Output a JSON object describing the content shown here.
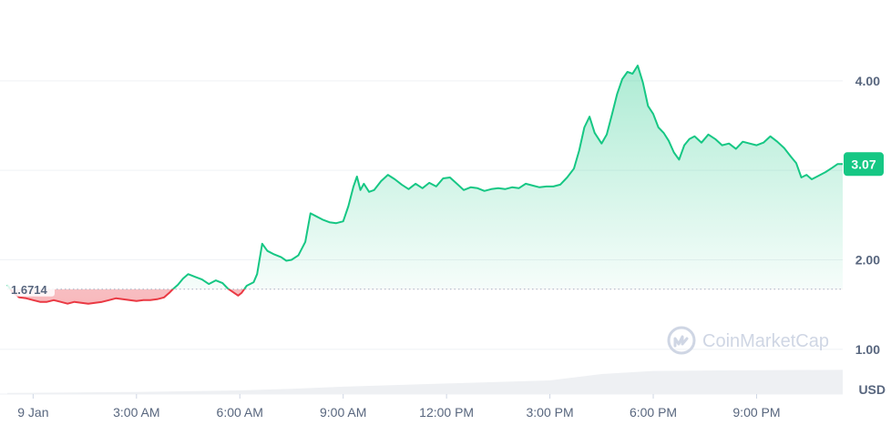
{
  "watermark": {
    "text": "CoinMarketCap",
    "icon": "coinmarketcap-logo-icon"
  },
  "chart_data": {
    "type": "area",
    "currency": "USD",
    "opening_price": "1.6714",
    "opening_value": 1.6714,
    "current_price": "3.07",
    "ylim": [
      0.5,
      4.7
    ],
    "y_ticks": [
      {
        "value": 1.0,
        "label": "1.00"
      },
      {
        "value": 2.0,
        "label": "2.00"
      },
      {
        "value": 3.0,
        "label": "3.00"
      },
      {
        "value": 4.0,
        "label": "4.00"
      }
    ],
    "xlim": [
      -0.75,
      23.5
    ],
    "x_ticks": [
      {
        "value": 0,
        "label": "9 Jan"
      },
      {
        "value": 3,
        "label": "3:00 AM"
      },
      {
        "value": 6,
        "label": "6:00 AM"
      },
      {
        "value": 9,
        "label": "9:00 AM"
      },
      {
        "value": 12,
        "label": "12:00 PM"
      },
      {
        "value": 15,
        "label": "3:00 PM"
      },
      {
        "value": 18,
        "label": "6:00 PM"
      },
      {
        "value": 21,
        "label": "9:00 PM"
      }
    ],
    "colors": {
      "up": "#16c784",
      "down": "#ea3943",
      "grid": "#eff2f5",
      "badge": "#16c784",
      "volume": "#eef0f3"
    },
    "price": [
      [
        -0.75,
        1.72
      ],
      [
        -0.6,
        1.64
      ],
      [
        -0.4,
        1.58
      ],
      [
        -0.2,
        1.57
      ],
      [
        0.0,
        1.55
      ],
      [
        0.2,
        1.53
      ],
      [
        0.4,
        1.53
      ],
      [
        0.6,
        1.55
      ],
      [
        0.8,
        1.53
      ],
      [
        1.0,
        1.51
      ],
      [
        1.2,
        1.53
      ],
      [
        1.4,
        1.52
      ],
      [
        1.6,
        1.51
      ],
      [
        1.8,
        1.52
      ],
      [
        2.0,
        1.53
      ],
      [
        2.2,
        1.55
      ],
      [
        2.4,
        1.57
      ],
      [
        2.6,
        1.56
      ],
      [
        2.8,
        1.55
      ],
      [
        3.0,
        1.54
      ],
      [
        3.2,
        1.55
      ],
      [
        3.4,
        1.55
      ],
      [
        3.6,
        1.56
      ],
      [
        3.8,
        1.58
      ],
      [
        3.95,
        1.63
      ],
      [
        4.05,
        1.67
      ],
      [
        4.2,
        1.72
      ],
      [
        4.35,
        1.79
      ],
      [
        4.5,
        1.84
      ],
      [
        4.7,
        1.81
      ],
      [
        4.9,
        1.78
      ],
      [
        5.1,
        1.73
      ],
      [
        5.3,
        1.77
      ],
      [
        5.5,
        1.74
      ],
      [
        5.65,
        1.68
      ],
      [
        5.8,
        1.64
      ],
      [
        5.95,
        1.6
      ],
      [
        6.05,
        1.63
      ],
      [
        6.2,
        1.71
      ],
      [
        6.4,
        1.75
      ],
      [
        6.5,
        1.84
      ],
      [
        6.65,
        2.18
      ],
      [
        6.8,
        2.1
      ],
      [
        7.0,
        2.06
      ],
      [
        7.2,
        2.03
      ],
      [
        7.35,
        1.99
      ],
      [
        7.5,
        2.0
      ],
      [
        7.7,
        2.05
      ],
      [
        7.9,
        2.2
      ],
      [
        8.05,
        2.52
      ],
      [
        8.2,
        2.49
      ],
      [
        8.4,
        2.45
      ],
      [
        8.6,
        2.42
      ],
      [
        8.8,
        2.41
      ],
      [
        9.0,
        2.43
      ],
      [
        9.15,
        2.6
      ],
      [
        9.3,
        2.82
      ],
      [
        9.4,
        2.93
      ],
      [
        9.5,
        2.78
      ],
      [
        9.6,
        2.85
      ],
      [
        9.75,
        2.76
      ],
      [
        9.9,
        2.78
      ],
      [
        10.1,
        2.88
      ],
      [
        10.3,
        2.95
      ],
      [
        10.5,
        2.9
      ],
      [
        10.7,
        2.84
      ],
      [
        10.9,
        2.79
      ],
      [
        11.1,
        2.85
      ],
      [
        11.3,
        2.8
      ],
      [
        11.5,
        2.86
      ],
      [
        11.7,
        2.82
      ],
      [
        11.9,
        2.91
      ],
      [
        12.1,
        2.92
      ],
      [
        12.3,
        2.85
      ],
      [
        12.5,
        2.78
      ],
      [
        12.7,
        2.81
      ],
      [
        12.9,
        2.8
      ],
      [
        13.1,
        2.77
      ],
      [
        13.3,
        2.79
      ],
      [
        13.5,
        2.8
      ],
      [
        13.7,
        2.79
      ],
      [
        13.9,
        2.81
      ],
      [
        14.1,
        2.8
      ],
      [
        14.3,
        2.85
      ],
      [
        14.5,
        2.83
      ],
      [
        14.7,
        2.81
      ],
      [
        14.9,
        2.82
      ],
      [
        15.1,
        2.82
      ],
      [
        15.3,
        2.84
      ],
      [
        15.5,
        2.92
      ],
      [
        15.7,
        3.02
      ],
      [
        15.85,
        3.22
      ],
      [
        16.0,
        3.48
      ],
      [
        16.15,
        3.6
      ],
      [
        16.3,
        3.42
      ],
      [
        16.5,
        3.3
      ],
      [
        16.65,
        3.4
      ],
      [
        16.8,
        3.62
      ],
      [
        16.95,
        3.85
      ],
      [
        17.1,
        4.02
      ],
      [
        17.25,
        4.1
      ],
      [
        17.4,
        4.08
      ],
      [
        17.55,
        4.17
      ],
      [
        17.7,
        3.98
      ],
      [
        17.85,
        3.72
      ],
      [
        18.0,
        3.63
      ],
      [
        18.15,
        3.48
      ],
      [
        18.3,
        3.42
      ],
      [
        18.45,
        3.33
      ],
      [
        18.6,
        3.2
      ],
      [
        18.75,
        3.12
      ],
      [
        18.9,
        3.28
      ],
      [
        19.05,
        3.35
      ],
      [
        19.2,
        3.38
      ],
      [
        19.4,
        3.31
      ],
      [
        19.6,
        3.4
      ],
      [
        19.8,
        3.35
      ],
      [
        20.0,
        3.28
      ],
      [
        20.2,
        3.3
      ],
      [
        20.4,
        3.24
      ],
      [
        20.6,
        3.32
      ],
      [
        20.8,
        3.3
      ],
      [
        21.0,
        3.28
      ],
      [
        21.2,
        3.31
      ],
      [
        21.4,
        3.38
      ],
      [
        21.6,
        3.32
      ],
      [
        21.8,
        3.25
      ],
      [
        22.0,
        3.15
      ],
      [
        22.15,
        3.08
      ],
      [
        22.3,
        2.92
      ],
      [
        22.45,
        2.95
      ],
      [
        22.6,
        2.9
      ],
      [
        22.8,
        2.94
      ],
      [
        23.0,
        2.98
      ],
      [
        23.2,
        3.03
      ],
      [
        23.35,
        3.07
      ],
      [
        23.5,
        3.07
      ]
    ],
    "volume": [
      [
        -0.75,
        0.02
      ],
      [
        0.0,
        0.025
      ],
      [
        3.0,
        0.04
      ],
      [
        6.0,
        0.07
      ],
      [
        7.5,
        0.1
      ],
      [
        9.0,
        0.14
      ],
      [
        12.0,
        0.2
      ],
      [
        15.0,
        0.26
      ],
      [
        16.5,
        0.38
      ],
      [
        18.0,
        0.44
      ],
      [
        20.0,
        0.45
      ],
      [
        23.5,
        0.46
      ]
    ]
  }
}
